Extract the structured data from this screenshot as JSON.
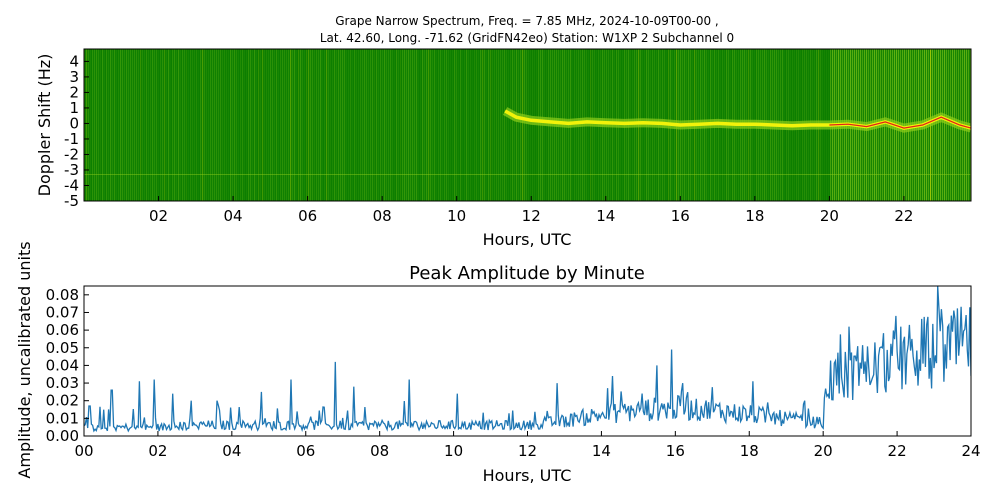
{
  "figure": {
    "title_line1": "Grape Narrow Spectrum, Freq. = 7.85 MHz, 2024-10-09T00-00 ,",
    "title_line2": "Lat.  42.60, Long. -71.62 (GridFN42eo) Station: W1XP 2 Subchannel 0"
  },
  "chart_data": [
    {
      "type": "heatmap",
      "title": "",
      "xlabel": "Hours, UTC",
      "ylabel": "Doppler Shift (Hz)",
      "xlim": [
        0,
        23.8
      ],
      "ylim": [
        -5,
        4.8
      ],
      "x_ticks": [
        2,
        4,
        6,
        8,
        10,
        12,
        14,
        16,
        18,
        20,
        22
      ],
      "x_tick_labels": [
        "02",
        "04",
        "06",
        "08",
        "10",
        "12",
        "14",
        "16",
        "18",
        "20",
        "22"
      ],
      "y_ticks": [
        4,
        3,
        2,
        1,
        0,
        -1,
        -2,
        -3,
        -4,
        -5
      ],
      "y_tick_labels": [
        "4",
        "3",
        "2",
        "1",
        "0",
        "-1",
        "-2",
        "-3",
        "-4",
        "-5"
      ],
      "colors": {
        "background": "#0a7d00",
        "mid": "#8fcf1a",
        "high": "#f2f20a",
        "peak": "#e0201a"
      },
      "doppler_trace": {
        "x": [
          11.3,
          11.6,
          12.0,
          12.5,
          13.0,
          13.5,
          14.0,
          14.5,
          15.0,
          15.5,
          16.0,
          16.5,
          17.0,
          17.5,
          18.0,
          18.5,
          19.0,
          19.5,
          20.0,
          20.5,
          21.0,
          21.5,
          22.0,
          22.5,
          23.0,
          23.5,
          23.8
        ],
        "y": [
          0.8,
          0.4,
          0.2,
          0.1,
          0.0,
          0.1,
          0.05,
          0.0,
          0.05,
          0.0,
          -0.1,
          -0.05,
          0.0,
          -0.05,
          -0.05,
          -0.1,
          -0.15,
          -0.1,
          -0.1,
          -0.05,
          -0.2,
          0.1,
          -0.3,
          -0.1,
          0.4,
          -0.1,
          -0.3
        ]
      }
    },
    {
      "type": "line",
      "title": "Peak Amplitude by Minute",
      "xlabel": "Hours, UTC",
      "ylabel": "Amplitude, uncalibrated units",
      "xlim": [
        0,
        24
      ],
      "ylim": [
        0,
        0.085
      ],
      "x_ticks": [
        0,
        2,
        4,
        6,
        8,
        10,
        12,
        14,
        16,
        18,
        20,
        22,
        24
      ],
      "x_tick_labels": [
        "00",
        "02",
        "04",
        "06",
        "08",
        "10",
        "12",
        "14",
        "16",
        "18",
        "20",
        "22",
        "24"
      ],
      "y_ticks": [
        0.0,
        0.01,
        0.02,
        0.03,
        0.04,
        0.05,
        0.06,
        0.07,
        0.08
      ],
      "y_tick_labels": [
        "0.00",
        "0.01",
        "0.02",
        "0.03",
        "0.04",
        "0.05",
        "0.06",
        "0.07",
        "0.08"
      ],
      "line_color": "#1f77b4",
      "series_profile": {
        "x": [
          0,
          1,
          2,
          3,
          4,
          5,
          6,
          7,
          8,
          9,
          10,
          11,
          12,
          13,
          14,
          15,
          16,
          17,
          18,
          19,
          20,
          20.1,
          21,
          22,
          23,
          24
        ],
        "baseline": [
          0.004,
          0.004,
          0.004,
          0.005,
          0.005,
          0.005,
          0.005,
          0.005,
          0.005,
          0.005,
          0.005,
          0.005,
          0.005,
          0.007,
          0.01,
          0.012,
          0.013,
          0.012,
          0.01,
          0.008,
          0.006,
          0.025,
          0.03,
          0.035,
          0.04,
          0.042
        ]
      },
      "series_peaks": {
        "x": [
          0.15,
          0.75,
          1.5,
          1.9,
          2.4,
          2.9,
          3.6,
          4.8,
          5.6,
          6.8,
          7.3,
          8.8,
          10.1,
          12.8,
          14.3,
          15.5,
          15.9,
          16.2,
          18.1,
          20.7,
          21.6,
          22.4,
          23.1,
          23.7
        ],
        "y": [
          0.017,
          0.026,
          0.031,
          0.032,
          0.024,
          0.02,
          0.02,
          0.025,
          0.032,
          0.042,
          0.028,
          0.032,
          0.024,
          0.03,
          0.034,
          0.04,
          0.049,
          0.03,
          0.031,
          0.062,
          0.05,
          0.055,
          0.085,
          0.055
        ]
      }
    }
  ]
}
